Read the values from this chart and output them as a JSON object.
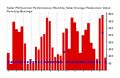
{
  "title1": "Solar PV/Inverter Performance Monthly Solar Energy Production Value Running Average",
  "bar_values": [
    120,
    45,
    340,
    290,
    270,
    310,
    185,
    45,
    75,
    50,
    165,
    145,
    235,
    255,
    370,
    345,
    160,
    90,
    110,
    100,
    265,
    295,
    150,
    370,
    335,
    275,
    120,
    245,
    285,
    330,
    190,
    150,
    75,
    365,
    390,
    85
  ],
  "avg_values": [
    55,
    55,
    55,
    55,
    55,
    55,
    55,
    55,
    55,
    55,
    55,
    55,
    55,
    55,
    55,
    55,
    55,
    55,
    55,
    55,
    130,
    55,
    55,
    55,
    55,
    55,
    55,
    55,
    55,
    55,
    55,
    55,
    55,
    55,
    265,
    55
  ],
  "bar_color": "#dd0000",
  "avg_color": "#0000cc",
  "bg_color": "#ffffff",
  "grid_color_v": "#aaaaaa",
  "grid_color_h": "#cccccc",
  "ylim": [
    0,
    410
  ],
  "ytick_vals": [
    50,
    100,
    150,
    200,
    250,
    300,
    350,
    400
  ],
  "ytick_labels": [
    "50",
    "100",
    "150",
    "200",
    "250",
    "300",
    "350",
    "400"
  ],
  "tick_fontsize": 3.2,
  "title_fontsize": 3.2,
  "n_bars": 36
}
